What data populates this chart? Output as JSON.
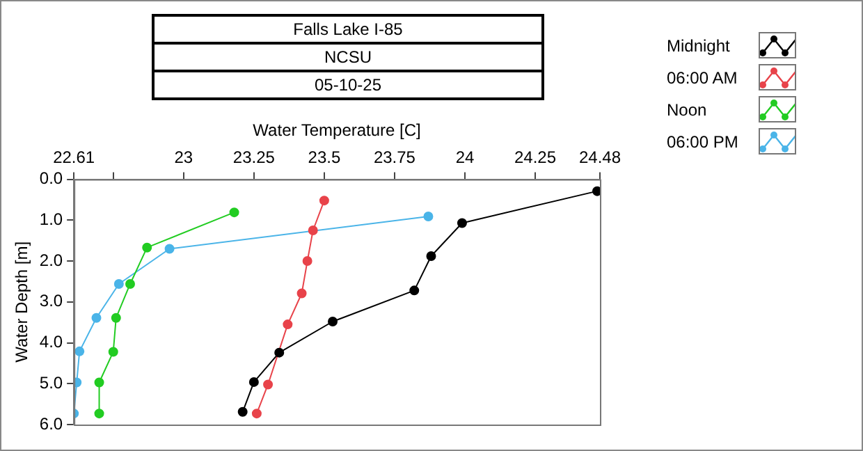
{
  "chart_data": {
    "type": "line",
    "title": "Falls Lake I-85",
    "subtitle": "NCSU",
    "annotations": [
      "05-10-25"
    ],
    "xlabel": "Water Temperature [C]",
    "ylabel": "Water Depth [m]",
    "xlim": [
      22.61,
      24.48
    ],
    "xticks": [
      22.61,
      {
        "value": 22.75,
        "label": null
      },
      23,
      23.25,
      23.5,
      23.75,
      24,
      24.25,
      24.48
    ],
    "ylim": [
      6,
      0
    ],
    "yticks": [
      {
        "value": 0,
        "label": "0.0"
      },
      {
        "value": 1,
        "label": "1.0"
      },
      {
        "value": 2,
        "label": "2.0"
      },
      {
        "value": 3,
        "label": "3.0"
      },
      {
        "value": 4,
        "label": "4.0"
      },
      {
        "value": 5,
        "label": "5.0"
      },
      {
        "value": 6,
        "label": "6.0"
      }
    ],
    "grid": false,
    "legend": "top right",
    "marker": "circle",
    "line_style": "solid",
    "series": [
      {
        "name": "Midnight",
        "color": "#000000",
        "x": [
          24.47,
          23.99,
          23.88,
          23.82,
          23.53,
          23.34,
          23.25,
          23.21
        ],
        "values": [
          0.29,
          1.07,
          1.88,
          2.72,
          3.48,
          4.24,
          4.96,
          5.69
        ]
      },
      {
        "name": "06:00 AM",
        "color": "#e8434a",
        "x": [
          23.5,
          23.46,
          23.44,
          23.42,
          23.37,
          23.34,
          23.3,
          23.26
        ],
        "values": [
          0.52,
          1.25,
          2.0,
          2.79,
          3.55,
          null,
          5.02,
          5.73
        ]
      },
      {
        "name": "Noon",
        "color": "#22cc22",
        "x": [
          23.18,
          22.87,
          22.81,
          22.76,
          22.75,
          22.7,
          22.7
        ],
        "values": [
          0.81,
          1.67,
          2.56,
          3.39,
          4.22,
          4.97,
          5.73
        ]
      },
      {
        "name": "06:00 PM",
        "color": "#4ab4e8",
        "x": [
          23.87,
          22.95,
          22.77,
          22.69,
          22.63,
          22.62,
          22.61
        ],
        "values": [
          0.91,
          1.7,
          2.56,
          3.39,
          4.21,
          4.97,
          5.73
        ]
      }
    ]
  }
}
